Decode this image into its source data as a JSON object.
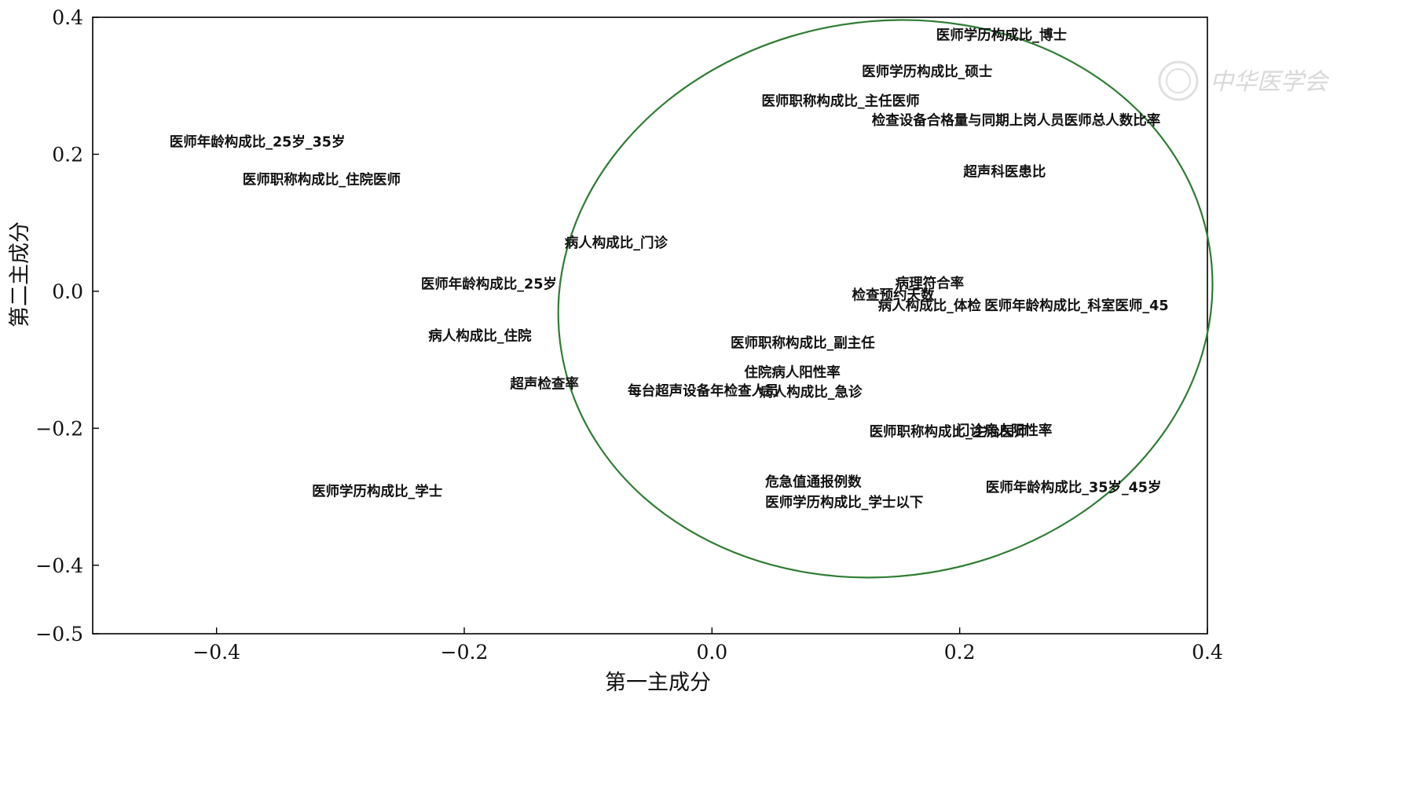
{
  "chart_data": {
    "type": "scatter",
    "title": "",
    "xlabel": "第一主成分",
    "ylabel": "第二主成分",
    "xlim": [
      -0.5,
      0.4
    ],
    "ylim": [
      -0.5,
      0.4
    ],
    "xticks": [
      -0.4,
      -0.2,
      0.0,
      0.2,
      0.4
    ],
    "xtick_labels": [
      "−0.4",
      "−0.2",
      "0.0",
      "0.2",
      "0.4"
    ],
    "yticks": [
      0.4,
      0.2,
      0.0,
      -0.2,
      -0.4,
      -0.5
    ],
    "ytick_labels": [
      "0.4",
      "0.2",
      "0.0",
      "−0.2",
      "−0.4",
      "−0.5"
    ],
    "grid": false,
    "ellipse": {
      "center": [
        0.14,
        -0.011
      ],
      "radius_x": 0.265,
      "radius_y": 0.405,
      "rotation_deg": -9,
      "color": "#2e7d32"
    },
    "points": [
      {
        "label": "医师学历构成比_博士",
        "x": 0.181,
        "y": 0.374
      },
      {
        "label": "医师学历构成比_硕士",
        "x": 0.121,
        "y": 0.321
      },
      {
        "label": "医师职称构成比_主任医师",
        "x": 0.04,
        "y": 0.278
      },
      {
        "label": "检查设备合格量与同期上岗人员医师总人数比率",
        "x": 0.129,
        "y": 0.25
      },
      {
        "label": "医师年龄构成比_25岁_35岁",
        "x": -0.438,
        "y": 0.218
      },
      {
        "label": "医师职称构成比_住院医师",
        "x": -0.379,
        "y": 0.163
      },
      {
        "label": "超声科医患比",
        "x": 0.203,
        "y": 0.175
      },
      {
        "label": "病人构成比_门诊",
        "x": -0.119,
        "y": 0.071
      },
      {
        "label": "医师年龄构成比_25岁",
        "x": -0.235,
        "y": 0.011
      },
      {
        "label": "病理符合率",
        "x": 0.148,
        "y": 0.012
      },
      {
        "label": "检查预约天数",
        "x": 0.113,
        "y": -0.005
      },
      {
        "label": "病人构成比_体检",
        "x": 0.134,
        "y": -0.021
      },
      {
        "label": "医师年龄构成比_科室医师_45",
        "x": 0.22,
        "y": -0.021
      },
      {
        "label": "病人构成比_住院",
        "x": -0.229,
        "y": -0.065
      },
      {
        "label": "医师职称构成比_副主任",
        "x": 0.015,
        "y": -0.075
      },
      {
        "label": "住院病人阳性率",
        "x": 0.026,
        "y": -0.118
      },
      {
        "label": "超声检查率",
        "x": -0.163,
        "y": -0.135
      },
      {
        "label": "每台超声设备年检查人员",
        "x": -0.068,
        "y": -0.145
      },
      {
        "label": "病人构成比_急诊",
        "x": 0.038,
        "y": -0.147
      },
      {
        "label": "医师职称构成比_主治医师",
        "x": 0.127,
        "y": -0.205
      },
      {
        "label": "门诊病人阳性率",
        "x": 0.197,
        "y": -0.203
      },
      {
        "label": "危急值通报例数",
        "x": 0.043,
        "y": -0.278
      },
      {
        "label": "医师学历构成比_学士以下",
        "x": 0.043,
        "y": -0.308
      },
      {
        "label": "医师学历构成比_学士",
        "x": -0.323,
        "y": -0.292
      },
      {
        "label": "医师年龄构成比_35岁_45岁",
        "x": 0.221,
        "y": -0.286
      }
    ]
  },
  "watermark": {
    "text": "中华医学会"
  }
}
